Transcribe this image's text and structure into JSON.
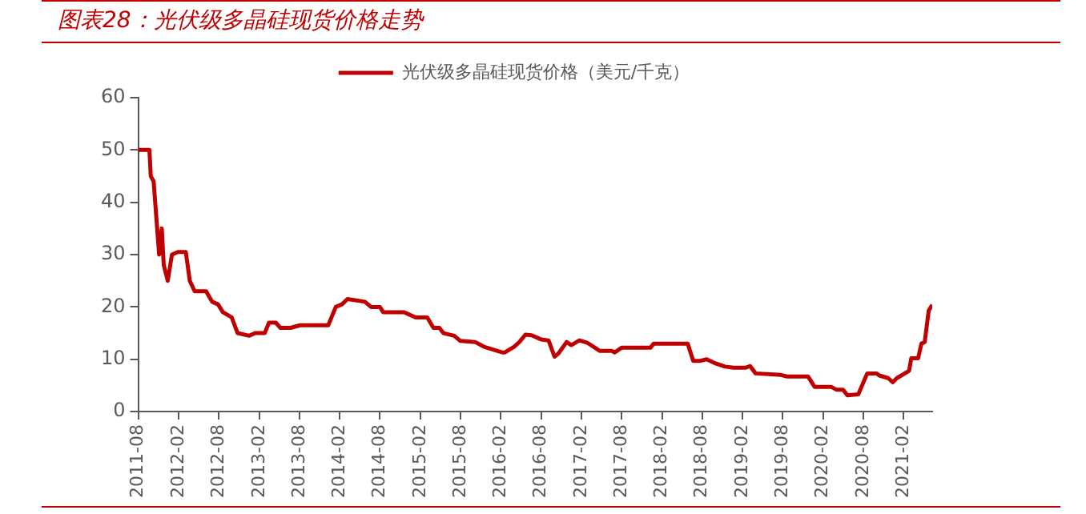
{
  "chart_data": {
    "type": "line",
    "title": "图表28：光伏级多晶硅现货价格走势",
    "legend": "top",
    "grid": false,
    "marker": "none",
    "line_style": "solid",
    "xlim": [
      "2011-08",
      "2021-06-10"
    ],
    "xticks": [
      "2011-08",
      "2012-02",
      "2012-08",
      "2013-02",
      "2013-08",
      "2014-02",
      "2014-08",
      "2015-02",
      "2015-08",
      "2016-02",
      "2016-08",
      "2017-02",
      "2017-08",
      "2018-02",
      "2018-08",
      "2019-02",
      "2019-08",
      "2020-02",
      "2020-08",
      "2021-02"
    ],
    "ylim": [
      0,
      60
    ],
    "yticks": [
      0,
      10,
      20,
      30,
      40,
      50,
      60
    ],
    "x": [
      "2011-08-01",
      "2011-09-21",
      "2011-09-27",
      "2011-10-10",
      "2011-11-04",
      "2011-11-16",
      "2011-11-25",
      "2011-12-13",
      "2012-01-01",
      "2012-01-28",
      "2012-03-04",
      "2012-03-22",
      "2012-04-13",
      "2012-06-04",
      "2012-07-01",
      "2012-07-28",
      "2012-08-19",
      "2012-09-28",
      "2012-10-25",
      "2012-12-16",
      "2013-01-13",
      "2013-02-25",
      "2013-03-16",
      "2013-04-16",
      "2013-05-07",
      "2013-06-22",
      "2013-08-04",
      "2013-12-10",
      "2014-01-13",
      "2014-02-10",
      "2014-03-07",
      "2014-05-25",
      "2014-06-22",
      "2014-08-01",
      "2014-08-16",
      "2014-11-19",
      "2015-01-10",
      "2015-03-04",
      "2015-04-01",
      "2015-04-28",
      "2015-05-16",
      "2015-07-04",
      "2015-08-01",
      "2015-10-07",
      "2015-11-16",
      "2016-02-07",
      "2016-02-19",
      "2016-04-01",
      "2016-04-25",
      "2016-05-22",
      "2016-06-19",
      "2016-08-01",
      "2016-09-04",
      "2016-10-01",
      "2016-10-19",
      "2016-11-25",
      "2016-12-16",
      "2017-01-22",
      "2017-03-01",
      "2017-04-25",
      "2017-06-19",
      "2017-07-01",
      "2017-08-01",
      "2017-12-10",
      "2017-12-25",
      "2018-05-28",
      "2018-06-22",
      "2018-07-25",
      "2018-08-22",
      "2018-10-01",
      "2018-11-13",
      "2018-12-22",
      "2019-02-16",
      "2019-03-07",
      "2019-04-01",
      "2019-07-25",
      "2019-08-22",
      "2019-11-25",
      "2019-12-25",
      "2020-03-10",
      "2020-04-01",
      "2020-05-01",
      "2020-05-22",
      "2020-07-10",
      "2020-08-19",
      "2020-10-01",
      "2020-10-13",
      "2020-11-22",
      "2020-12-13",
      "2021-01-01",
      "2021-02-13",
      "2021-02-25",
      "2021-03-07",
      "2021-04-07",
      "2021-04-22",
      "2021-05-07",
      "2021-05-25",
      "2021-06-10"
    ],
    "series": [
      {
        "name": "光伏级多晶硅现货价格（美元/千克）",
        "color": "#c00000",
        "values": [
          50,
          50,
          45,
          44,
          30,
          35,
          28,
          25,
          30,
          30.5,
          30.5,
          25,
          23,
          23,
          21,
          20.5,
          19,
          18,
          15,
          14.5,
          15,
          15,
          17,
          17,
          16,
          16,
          16.5,
          16.5,
          20,
          20.5,
          21.5,
          21,
          20,
          20,
          19,
          19,
          18,
          18,
          16,
          16,
          15,
          14.5,
          13.5,
          13.3,
          12.4,
          11.3,
          11.3,
          12.4,
          13.3,
          14.7,
          14.6,
          13.8,
          13.6,
          10.5,
          11.1,
          13.3,
          12.7,
          13.6,
          13.1,
          11.6,
          11.6,
          11.3,
          12.2,
          12.2,
          13,
          13,
          9.7,
          9.7,
          10,
          9.2,
          8.6,
          8.4,
          8.4,
          8.7,
          7.3,
          7.0,
          6.7,
          6.7,
          4.7,
          4.7,
          4.2,
          4.2,
          3.1,
          3.3,
          7.3,
          7.3,
          6.9,
          6.4,
          5.6,
          6.4,
          7.5,
          7.8,
          10.2,
          10.2,
          13,
          13.3,
          19.3,
          20.4
        ]
      }
    ]
  }
}
